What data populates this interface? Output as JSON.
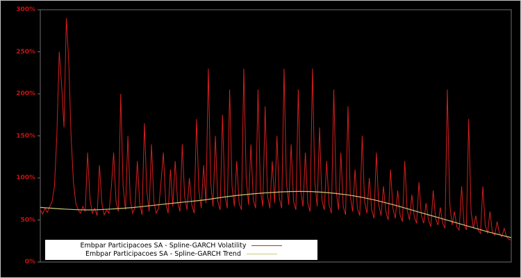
{
  "chart_data": {
    "type": "line",
    "title": "",
    "xlabel": "",
    "ylabel": "",
    "ylim": [
      0,
      300
    ],
    "yticks": [
      0,
      50,
      100,
      150,
      200,
      250,
      300
    ],
    "ytick_suffix": "%",
    "x_axis_labels": "none",
    "grid": "off",
    "background_color": "#000000",
    "frame_color": "#6e6e6e",
    "axis_label_color": "#cc1111",
    "legend_position": "bottom-left",
    "legend_background": "#ffffff",
    "legend_text_color": "#000000",
    "series": [
      {
        "name": "Embpar Participacoes SA - Spline-GARCH Volatility",
        "color": "#d81e1e",
        "values": [
          62,
          57,
          64,
          59,
          66,
          72,
          90,
          150,
          250,
          210,
          160,
          290,
          240,
          150,
          95,
          70,
          62,
          58,
          66,
          60,
          130,
          75,
          58,
          64,
          55,
          115,
          70,
          56,
          62,
          58,
          88,
          130,
          72,
          60,
          200,
          90,
          62,
          150,
          75,
          58,
          65,
          120,
          70,
          56,
          165,
          85,
          60,
          140,
          72,
          58,
          64,
          95,
          130,
          70,
          58,
          110,
          66,
          120,
          72,
          60,
          140,
          78,
          62,
          100,
          68,
          58,
          170,
          85,
          64,
          115,
          70,
          230,
          95,
          66,
          150,
          72,
          62,
          175,
          80,
          64,
          205,
          90,
          66,
          120,
          70,
          62,
          230,
          100,
          68,
          140,
          74,
          64,
          205,
          85,
          66,
          185,
          78,
          64,
          120,
          70,
          150,
          76,
          64,
          230,
          95,
          68,
          140,
          72,
          62,
          205,
          85,
          66,
          130,
          70,
          60,
          230,
          95,
          66,
          160,
          74,
          62,
          120,
          68,
          58,
          205,
          85,
          62,
          130,
          66,
          56,
          185,
          78,
          60,
          110,
          64,
          55,
          150,
          72,
          58,
          100,
          62,
          52,
          130,
          68,
          55,
          90,
          60,
          50,
          110,
          64,
          52,
          85,
          56,
          48,
          120,
          62,
          50,
          80,
          54,
          46,
          95,
          56,
          46,
          70,
          50,
          42,
          85,
          52,
          44,
          65,
          46,
          40,
          205,
          70,
          44,
          60,
          42,
          38,
          90,
          46,
          38,
          170,
          60,
          40,
          55,
          38,
          34,
          90,
          44,
          34,
          60,
          36,
          32,
          48,
          34,
          30,
          40,
          30,
          27,
          26
        ]
      },
      {
        "name": "Embpar Participacoes SA - Spline-GARCH Trend",
        "color": "#c9c87a",
        "x": [
          0,
          0.05,
          0.1,
          0.15,
          0.2,
          0.25,
          0.3,
          0.35,
          0.4,
          0.45,
          0.5,
          0.55,
          0.6,
          0.65,
          0.7,
          0.75,
          0.8,
          0.85,
          0.9,
          0.95,
          1
        ],
        "values": [
          65,
          63,
          62,
          63,
          65,
          68,
          71,
          74,
          78,
          81,
          83,
          84,
          83,
          80,
          75,
          68,
          60,
          52,
          44,
          36,
          29
        ]
      }
    ]
  }
}
